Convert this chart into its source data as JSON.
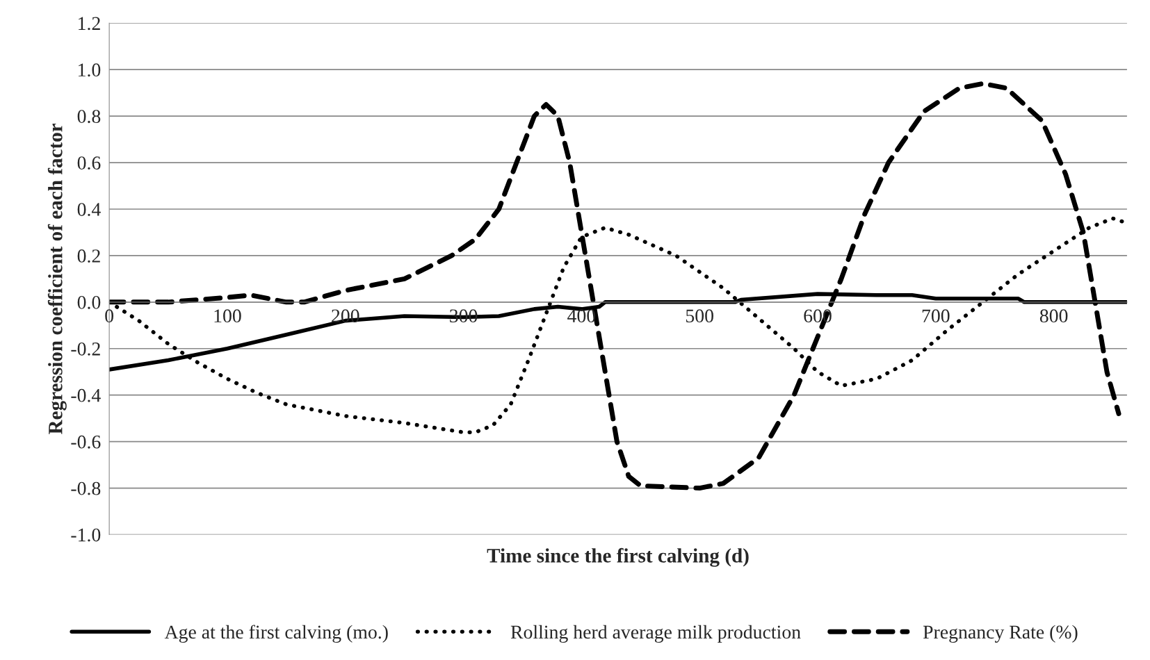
{
  "chart_data": {
    "type": "line",
    "xlabel": "Time since the first calving (d)",
    "ylabel": "Regression coefficient of each factor",
    "xlim": [
      0,
      862
    ],
    "xticks": [
      0,
      100,
      200,
      300,
      400,
      500,
      600,
      700,
      800
    ],
    "ylim": [
      -1.0,
      1.2
    ],
    "yticks": [
      {
        "value": -1.0,
        "label": "-1.0"
      },
      {
        "value": -0.8,
        "label": "-0.8"
      },
      {
        "value": -0.6,
        "label": "-0.6"
      },
      {
        "value": -0.4,
        "label": "-0.4"
      },
      {
        "value": -0.2,
        "label": "-0.2"
      },
      {
        "value": 0.0,
        "label": "0.0"
      },
      {
        "value": 0.2,
        "label": "0.2"
      },
      {
        "value": 0.4,
        "label": "0.4"
      },
      {
        "value": 0.6,
        "label": "0.6"
      },
      {
        "value": 0.8,
        "label": "0.8"
      },
      {
        "value": 1.0,
        "label": "1.0"
      },
      {
        "value": 1.2,
        "label": "1.2"
      }
    ],
    "grid": "y",
    "legend": "bottom",
    "series": [
      {
        "name": "Age at the first calving (mo.)",
        "color": "#000000",
        "line_style": "solid",
        "x": [
          0,
          50,
          100,
          150,
          200,
          250,
          300,
          330,
          360,
          380,
          400,
          415,
          420,
          530,
          535,
          600,
          650,
          680,
          700,
          770,
          775,
          862
        ],
        "values": [
          -0.29,
          -0.25,
          -0.2,
          -0.14,
          -0.08,
          -0.06,
          -0.065,
          -0.06,
          -0.03,
          -0.02,
          -0.03,
          -0.02,
          0.0,
          0.0,
          0.01,
          0.035,
          0.03,
          0.03,
          0.015,
          0.015,
          0.0,
          0.0
        ]
      },
      {
        "name": "Rolling herd average milk production",
        "color": "#000000",
        "line_style": "dotted",
        "x": [
          0,
          25,
          50,
          75,
          100,
          125,
          150,
          200,
          250,
          300,
          310,
          325,
          340,
          355,
          370,
          385,
          400,
          420,
          440,
          480,
          520,
          550,
          580,
          600,
          620,
          650,
          680,
          710,
          740,
          770,
          800,
          830,
          850,
          862
        ],
        "values": [
          0.0,
          -0.08,
          -0.18,
          -0.26,
          -0.33,
          -0.39,
          -0.44,
          -0.49,
          -0.52,
          -0.56,
          -0.56,
          -0.53,
          -0.44,
          -0.25,
          -0.05,
          0.15,
          0.28,
          0.32,
          0.29,
          0.2,
          0.06,
          -0.07,
          -0.2,
          -0.3,
          -0.36,
          -0.33,
          -0.25,
          -0.12,
          0.0,
          0.12,
          0.22,
          0.32,
          0.36,
          0.34
        ]
      },
      {
        "name": "Pregnancy Rate (%)",
        "color": "#000000",
        "line_style": "dashed",
        "x": [
          0,
          50,
          100,
          120,
          150,
          165,
          200,
          250,
          290,
          310,
          330,
          345,
          360,
          370,
          380,
          390,
          400,
          410,
          420,
          430,
          440,
          450,
          500,
          520,
          550,
          580,
          600,
          620,
          640,
          660,
          690,
          720,
          740,
          760,
          790,
          810,
          825,
          835,
          845,
          855
        ],
        "values": [
          0.0,
          0.0,
          0.02,
          0.03,
          0.0,
          0.0,
          0.05,
          0.1,
          0.2,
          0.27,
          0.4,
          0.6,
          0.8,
          0.85,
          0.8,
          0.6,
          0.3,
          0.0,
          -0.3,
          -0.6,
          -0.75,
          -0.79,
          -0.8,
          -0.78,
          -0.67,
          -0.4,
          -0.15,
          0.1,
          0.38,
          0.6,
          0.82,
          0.92,
          0.94,
          0.92,
          0.78,
          0.55,
          0.3,
          0.0,
          -0.3,
          -0.48
        ]
      }
    ]
  }
}
